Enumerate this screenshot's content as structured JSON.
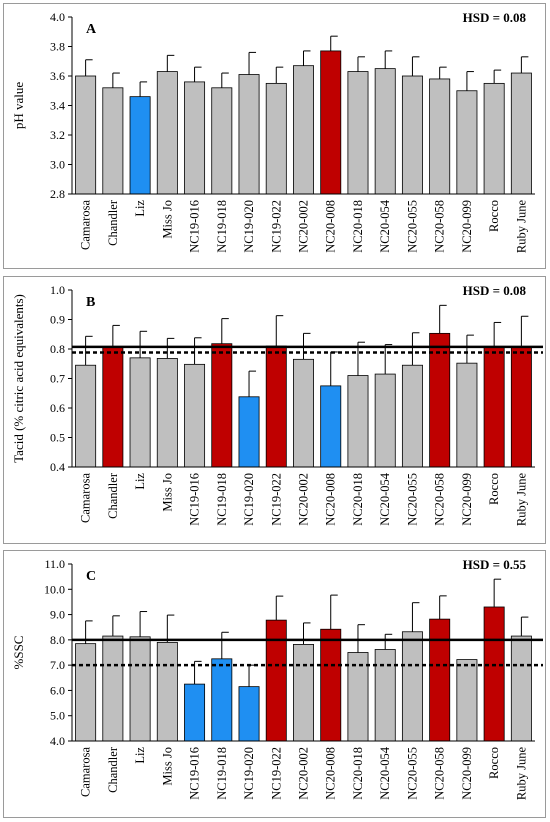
{
  "chart_data": [
    {
      "type": "bar",
      "panel_label": "A",
      "hsd_label": "HSD = 0.08",
      "ylabel": "pH value",
      "ylim": [
        2.8,
        4.0
      ],
      "yticks": [
        "2.8",
        "3.0",
        "3.2",
        "3.4",
        "3.6",
        "3.8",
        "4.0"
      ],
      "categories": [
        "Camarosa",
        "Chandler",
        "Liz",
        "Miss Jo",
        "NC19-016",
        "NC19-018",
        "NC19-020",
        "NC19-022",
        "NC20-002",
        "NC20-008",
        "NC20-018",
        "NC20-054",
        "NC20-055",
        "NC20-058",
        "NC20-099",
        "Rocco",
        "Ruby June"
      ],
      "values": [
        3.6,
        3.52,
        3.46,
        3.63,
        3.56,
        3.52,
        3.61,
        3.55,
        3.67,
        3.77,
        3.63,
        3.65,
        3.6,
        3.58,
        3.5,
        3.55,
        3.62
      ],
      "errors": [
        0.11,
        0.1,
        0.1,
        0.11,
        0.1,
        0.1,
        0.15,
        0.11,
        0.1,
        0.1,
        0.1,
        0.12,
        0.13,
        0.08,
        0.13,
        0.09,
        0.11
      ],
      "colors": [
        "gray",
        "gray",
        "blue",
        "gray",
        "gray",
        "gray",
        "gray",
        "gray",
        "gray",
        "red",
        "gray",
        "gray",
        "gray",
        "gray",
        "gray",
        "gray",
        "gray"
      ],
      "reference_lines": []
    },
    {
      "type": "bar",
      "panel_label": "B",
      "hsd_label": "HSD = 0.08",
      "ylabel": "Tacid (% citric acid equivalents)",
      "ylim": [
        0.4,
        1.0
      ],
      "yticks": [
        "0.4",
        "0.5",
        "0.6",
        "0.7",
        "0.8",
        "0.9",
        "1.0"
      ],
      "categories": [
        "Camarosa",
        "Chandler",
        "Liz",
        "Miss Jo",
        "NC19-016",
        "NC19-018",
        "NC19-020",
        "NC19-022",
        "NC20-002",
        "NC20-008",
        "NC20-018",
        "NC20-054",
        "NC20-055",
        "NC20-058",
        "NC20-099",
        "Rocco",
        "Ruby June"
      ],
      "values": [
        0.745,
        0.808,
        0.77,
        0.768,
        0.748,
        0.818,
        0.638,
        0.81,
        0.765,
        0.675,
        0.71,
        0.715,
        0.745,
        0.853,
        0.752,
        0.805,
        0.808
      ],
      "errors": [
        0.098,
        0.072,
        0.09,
        0.068,
        0.09,
        0.085,
        0.087,
        0.103,
        0.088,
        0.115,
        0.113,
        0.1,
        0.11,
        0.095,
        0.095,
        0.085,
        0.103
      ],
      "colors": [
        "gray",
        "red",
        "gray",
        "gray",
        "gray",
        "red",
        "blue",
        "red",
        "gray",
        "blue",
        "gray",
        "gray",
        "gray",
        "red",
        "gray",
        "red",
        "red"
      ],
      "reference_lines": [
        {
          "value": 0.807,
          "style": "solid"
        },
        {
          "value": 0.788,
          "style": "dotted"
        }
      ]
    },
    {
      "type": "bar",
      "panel_label": "C",
      "hsd_label": "HSD = 0.55",
      "ylabel": "%SSC",
      "ylim": [
        4.0,
        11.0
      ],
      "yticks": [
        "4.0",
        "5.0",
        "6.0",
        "7.0",
        "8.0",
        "9.0",
        "10.0",
        "11.0"
      ],
      "categories": [
        "Camarosa",
        "Chandler",
        "Liz",
        "Miss Jo",
        "NC19-016",
        "NC19-018",
        "NC19-020",
        "NC19-022",
        "NC20-002",
        "NC20-008",
        "NC20-018",
        "NC20-054",
        "NC20-055",
        "NC20-058",
        "NC20-099",
        "Rocco",
        "Ruby June"
      ],
      "values": [
        7.85,
        8.15,
        8.12,
        7.9,
        6.25,
        7.25,
        6.15,
        8.78,
        7.82,
        8.42,
        7.5,
        7.62,
        8.32,
        8.82,
        7.22,
        9.3,
        8.15
      ],
      "errors": [
        0.9,
        0.8,
        1.0,
        1.08,
        0.9,
        1.05,
        0.85,
        0.95,
        0.85,
        1.35,
        1.1,
        0.6,
        1.15,
        0.92,
        0.0,
        1.1,
        0.75
      ],
      "colors": [
        "gray",
        "gray",
        "gray",
        "gray",
        "blue",
        "blue",
        "blue",
        "red",
        "gray",
        "red",
        "gray",
        "gray",
        "gray",
        "red",
        "gray",
        "red",
        "gray"
      ],
      "reference_lines": [
        {
          "value": 8.0,
          "style": "solid"
        },
        {
          "value": 7.0,
          "style": "dotted"
        }
      ]
    }
  ],
  "palette": {
    "gray": "#bfbfbf",
    "blue": "#1f8ff2",
    "red": "#bf0000",
    "axis": "#000000",
    "outline": "#000000"
  }
}
